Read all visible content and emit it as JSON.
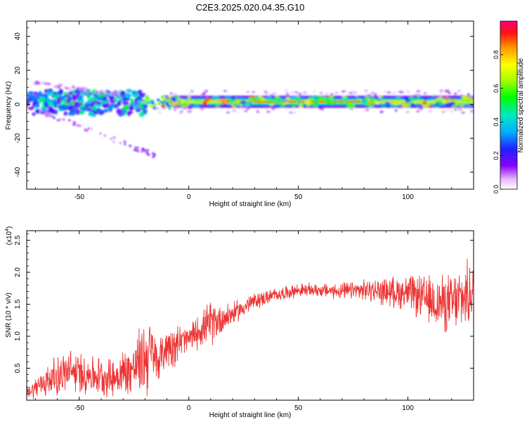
{
  "figure": {
    "title": "C2E3.2025.020.04.35.G10"
  },
  "chart_data": [
    {
      "type": "heatmap",
      "xlabel": "Height of straight line (km)",
      "ylabel": "Frequency (Hz)",
      "xlim": [
        -74,
        130
      ],
      "ylim": [
        -50,
        49
      ],
      "xticks": [
        -50,
        0,
        50,
        100
      ],
      "xtick_labels": [
        "-50",
        "0",
        "50",
        "100"
      ],
      "yticks": [
        -40,
        -20,
        0,
        20,
        40
      ],
      "ytick_labels": [
        "-40",
        "-20",
        "0",
        "20",
        "40"
      ],
      "band": {
        "x_start": -20,
        "x_end": 130,
        "center_hz": 1.5,
        "halfwidth_hz": 3.5
      },
      "scatter_region": {
        "x_start": -74,
        "x_end": -20,
        "hz_min": -35,
        "hz_max": 15
      },
      "colorbar": {
        "label": "Normalized spectral amplitude",
        "ticks": [
          0.0,
          0.2,
          0.4,
          0.6,
          0.8
        ],
        "tick_labels": [
          "0.0",
          "0.2",
          "0.4",
          "0.6",
          "0.8"
        ],
        "range": [
          0,
          1
        ]
      },
      "grid": false
    },
    {
      "type": "line",
      "xlabel": "Height of straight line (km)",
      "ylabel": "SNR (10 * v/v)",
      "multiplier": "(x10",
      "multiplier_exp": "4",
      "multiplier_close": ")",
      "xlim": [
        -74,
        130
      ],
      "ylim": [
        0,
        2.65
      ],
      "xticks": [
        -50,
        0,
        50,
        100
      ],
      "xtick_labels": [
        "-50",
        "0",
        "50",
        "100"
      ],
      "yticks": [
        0.5,
        1.0,
        1.5,
        2.0,
        2.5
      ],
      "ytick_labels": [
        "0.5",
        "1.0",
        "1.5",
        "2.0",
        "2.5"
      ],
      "color": "#ee3333",
      "series": [
        {
          "x": [
            -74,
            -65,
            -55,
            -45,
            -35,
            -25,
            -18,
            -14,
            -10,
            -5,
            0,
            5,
            10,
            20,
            30,
            40,
            50,
            60,
            70,
            80,
            90,
            100,
            110,
            120,
            130
          ],
          "y": [
            0.12,
            0.3,
            0.45,
            0.4,
            0.35,
            0.5,
            0.75,
            0.6,
            0.85,
            0.9,
            0.95,
            1.1,
            1.2,
            1.35,
            1.55,
            1.65,
            1.72,
            1.72,
            1.7,
            1.72,
            1.7,
            1.68,
            1.55,
            1.5,
            1.7
          ],
          "spread": [
            0.1,
            0.3,
            0.4,
            0.35,
            0.35,
            0.5,
            0.8,
            0.3,
            0.45,
            0.35,
            0.25,
            0.3,
            0.4,
            0.2,
            0.15,
            0.12,
            0.12,
            0.12,
            0.15,
            0.18,
            0.25,
            0.32,
            0.45,
            0.55,
            0.6
          ]
        }
      ],
      "grid": false
    }
  ]
}
